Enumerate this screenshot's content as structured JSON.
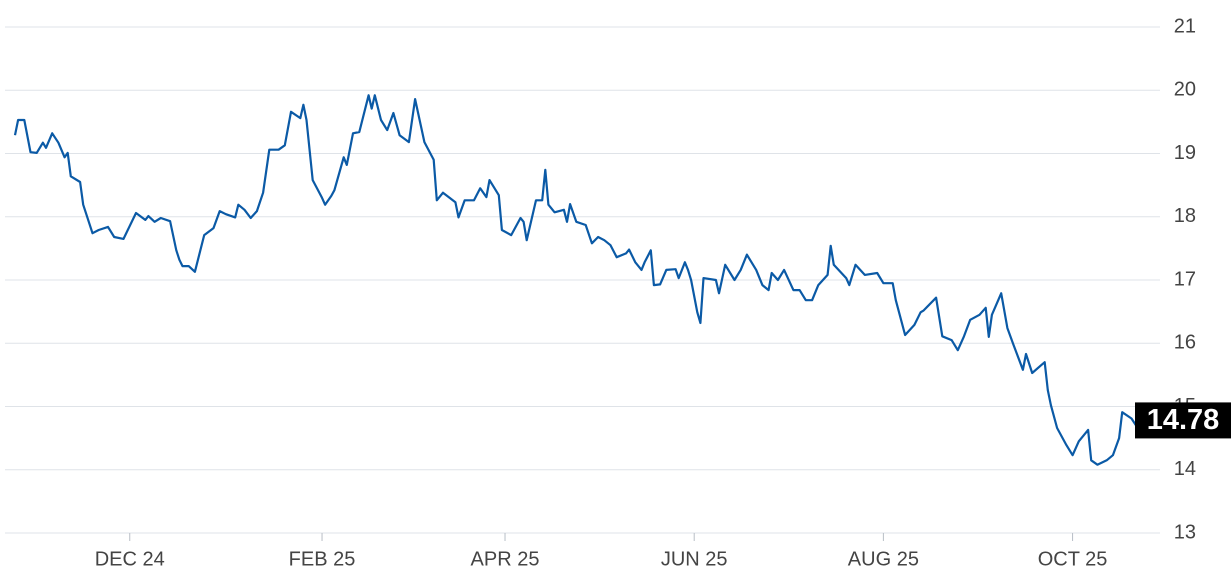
{
  "chart_data": {
    "type": "line",
    "x": [
      -37,
      -36,
      -34,
      -32,
      -30,
      -28,
      -27,
      -25,
      -23,
      -21,
      -20,
      -19,
      -16,
      -15,
      -12,
      -10,
      -7,
      -5,
      -2,
      2,
      5,
      6,
      8,
      10,
      13,
      15,
      16,
      17,
      19,
      21,
      24,
      27,
      29,
      31,
      34,
      35,
      37,
      39,
      41,
      43,
      45,
      48,
      50,
      52,
      55,
      56,
      57,
      59,
      62,
      63,
      65,
      66,
      69,
      70,
      72,
      74,
      77,
      78,
      79,
      81,
      83,
      85,
      87,
      90,
      92,
      95,
      98,
      99,
      101,
      105,
      106,
      108,
      111,
      113,
      115,
      116,
      119,
      120,
      123,
      126,
      127,
      128,
      131,
      133,
      134,
      135,
      137,
      140,
      141,
      142,
      144,
      147,
      149,
      151,
      153,
      155,
      157,
      160,
      161,
      163,
      165,
      166,
      168,
      169,
      171,
      173,
      176,
      177,
      179,
      180,
      181,
      183,
      184,
      185,
      189,
      190,
      192,
      195,
      197,
      199,
      202,
      204,
      206,
      207,
      209,
      211,
      214,
      216,
      218,
      220,
      222,
      225,
      226,
      227,
      231,
      232,
      234,
      237,
      241,
      243,
      246,
      247,
      250,
      253,
      255,
      256,
      260,
      262,
      265,
      267,
      269,
      271,
      274,
      276,
      277,
      278,
      281,
      283,
      285,
      288,
      289,
      291,
      294,
      295,
      296,
      297,
      299,
      302,
      304,
      306,
      309,
      310,
      312,
      315,
      317,
      319,
      320,
      323,
      325,
      326,
      328
    ],
    "series": [
      {
        "color": "#0b5aa6",
        "values": [
          19.29,
          19.53,
          19.53,
          19.02,
          19.01,
          19.17,
          19.09,
          19.32,
          19.17,
          18.94,
          19.01,
          18.64,
          18.55,
          18.19,
          17.74,
          17.79,
          17.84,
          17.68,
          17.65,
          18.06,
          17.95,
          18.01,
          17.92,
          17.98,
          17.93,
          17.47,
          17.32,
          17.22,
          17.22,
          17.13,
          17.71,
          17.82,
          18.09,
          18.04,
          17.99,
          18.19,
          18.11,
          17.98,
          18.09,
          18.38,
          19.06,
          19.06,
          19.13,
          19.66,
          19.56,
          19.77,
          19.53,
          18.58,
          18.3,
          18.19,
          18.33,
          18.42,
          18.94,
          18.82,
          19.32,
          19.34,
          19.92,
          19.71,
          19.92,
          19.53,
          19.37,
          19.64,
          19.29,
          19.18,
          19.86,
          19.18,
          18.9,
          18.26,
          18.38,
          18.23,
          17.99,
          18.26,
          18.26,
          18.45,
          18.31,
          18.58,
          18.34,
          17.79,
          17.71,
          17.98,
          17.92,
          17.63,
          18.26,
          18.26,
          18.74,
          18.19,
          18.07,
          18.11,
          17.92,
          18.2,
          17.92,
          17.87,
          17.58,
          17.68,
          17.63,
          17.55,
          17.36,
          17.42,
          17.48,
          17.28,
          17.16,
          17.28,
          17.47,
          16.92,
          16.93,
          17.16,
          17.17,
          17.03,
          17.28,
          17.16,
          17.0,
          16.49,
          16.32,
          17.03,
          17.0,
          16.79,
          17.24,
          17.0,
          17.16,
          17.4,
          17.16,
          16.92,
          16.84,
          17.11,
          17.0,
          17.16,
          16.84,
          16.84,
          16.68,
          16.68,
          16.92,
          17.08,
          17.54,
          17.24,
          17.03,
          16.92,
          17.24,
          17.08,
          17.11,
          16.95,
          16.95,
          16.68,
          16.13,
          16.29,
          16.49,
          16.52,
          16.72,
          16.11,
          16.05,
          15.89,
          16.11,
          16.37,
          16.45,
          16.56,
          16.1,
          16.45,
          16.79,
          16.24,
          15.97,
          15.58,
          15.83,
          15.53,
          15.66,
          15.7,
          15.26,
          15.02,
          14.66,
          14.39,
          14.23,
          14.45,
          14.63,
          14.15,
          14.08,
          14.15,
          14.23,
          14.5,
          14.91,
          14.81,
          14.66,
          14.66,
          14.78
        ]
      }
    ],
    "last_value": 14.78,
    "xlim": [
      -37,
      328
    ],
    "xticks": [
      {
        "value": 0,
        "label": "DEC 24"
      },
      {
        "value": 62,
        "label": "FEB 25"
      },
      {
        "value": 121,
        "label": "APR 25"
      },
      {
        "value": 182,
        "label": "JUN 25"
      },
      {
        "value": 243,
        "label": "AUG 25"
      },
      {
        "value": 304,
        "label": "OCT 25"
      }
    ],
    "ylim": [
      13,
      21
    ],
    "yticks": [
      13,
      14,
      15,
      16,
      17,
      18,
      19,
      20,
      21
    ],
    "grid": true
  }
}
